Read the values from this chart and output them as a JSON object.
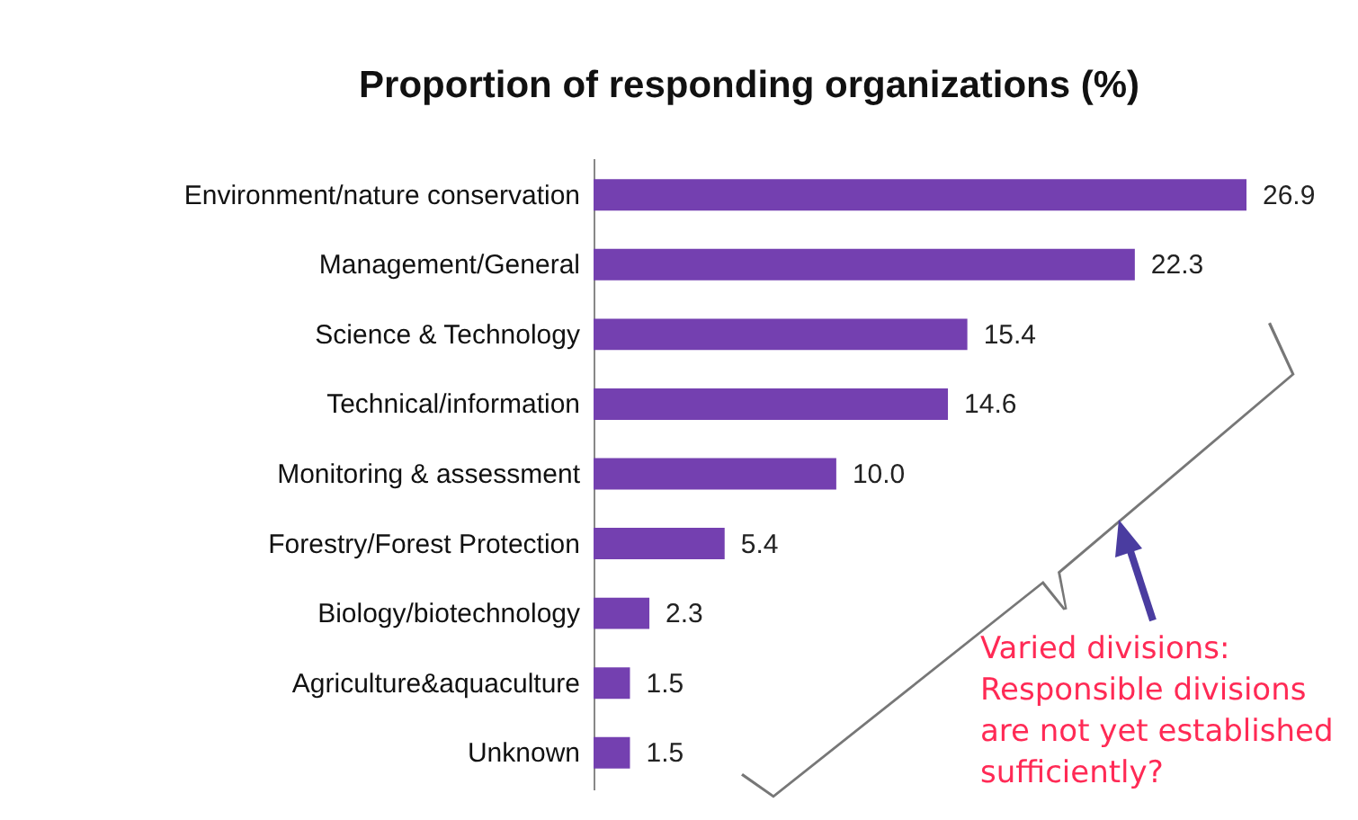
{
  "chart_data": {
    "type": "bar",
    "orientation": "horizontal",
    "title": "Proportion of responding organizations (%)",
    "categories": [
      "Environment/nature conservation",
      "Management/General",
      "Science & Technology",
      "Technical/information",
      "Monitoring & assessment",
      "Forestry/Forest Protection",
      "Biology/biotechnology",
      "Agriculture&aquaculture",
      "Unknown"
    ],
    "values": [
      26.9,
      22.3,
      15.4,
      14.6,
      10.0,
      5.4,
      2.3,
      1.5,
      1.5
    ],
    "value_labels": [
      "26.9",
      "22.3",
      "15.4",
      "14.6",
      "10.0",
      "5.4",
      "2.3",
      "1.5",
      "1.5"
    ],
    "color": "#7440b0",
    "annotations": [
      "Varied divisions:\nResponsible divisions\nare not yet established\nsufficiently?"
    ]
  }
}
